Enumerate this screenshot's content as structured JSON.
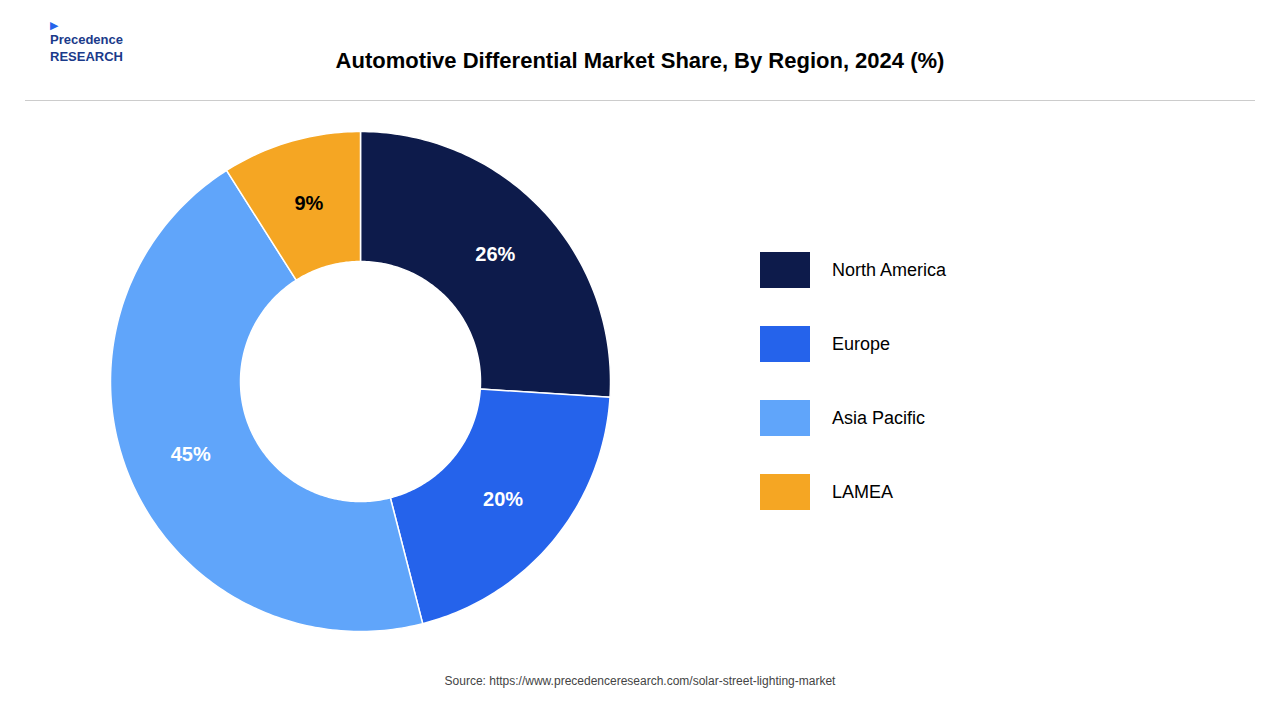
{
  "chart_data": {
    "type": "donut",
    "title": "Automotive Differential Market Share, By Region, 2024 (%)",
    "categories": [
      "North America",
      "Europe",
      "Asia Pacific",
      "LAMEA"
    ],
    "values": [
      26,
      20,
      45,
      9
    ],
    "value_labels": [
      "26%",
      "20%",
      "45%",
      "9%"
    ],
    "colors": [
      "#0d1b4b",
      "#2563eb",
      "#60a5fa",
      "#f5a623"
    ],
    "data_labels": true,
    "legend": "right",
    "annotations": [
      "▶",
      "Precedence\nRESEARCH",
      "Source: https://www.precedenceresearch.com/solar-street-lighting-market"
    ]
  }
}
